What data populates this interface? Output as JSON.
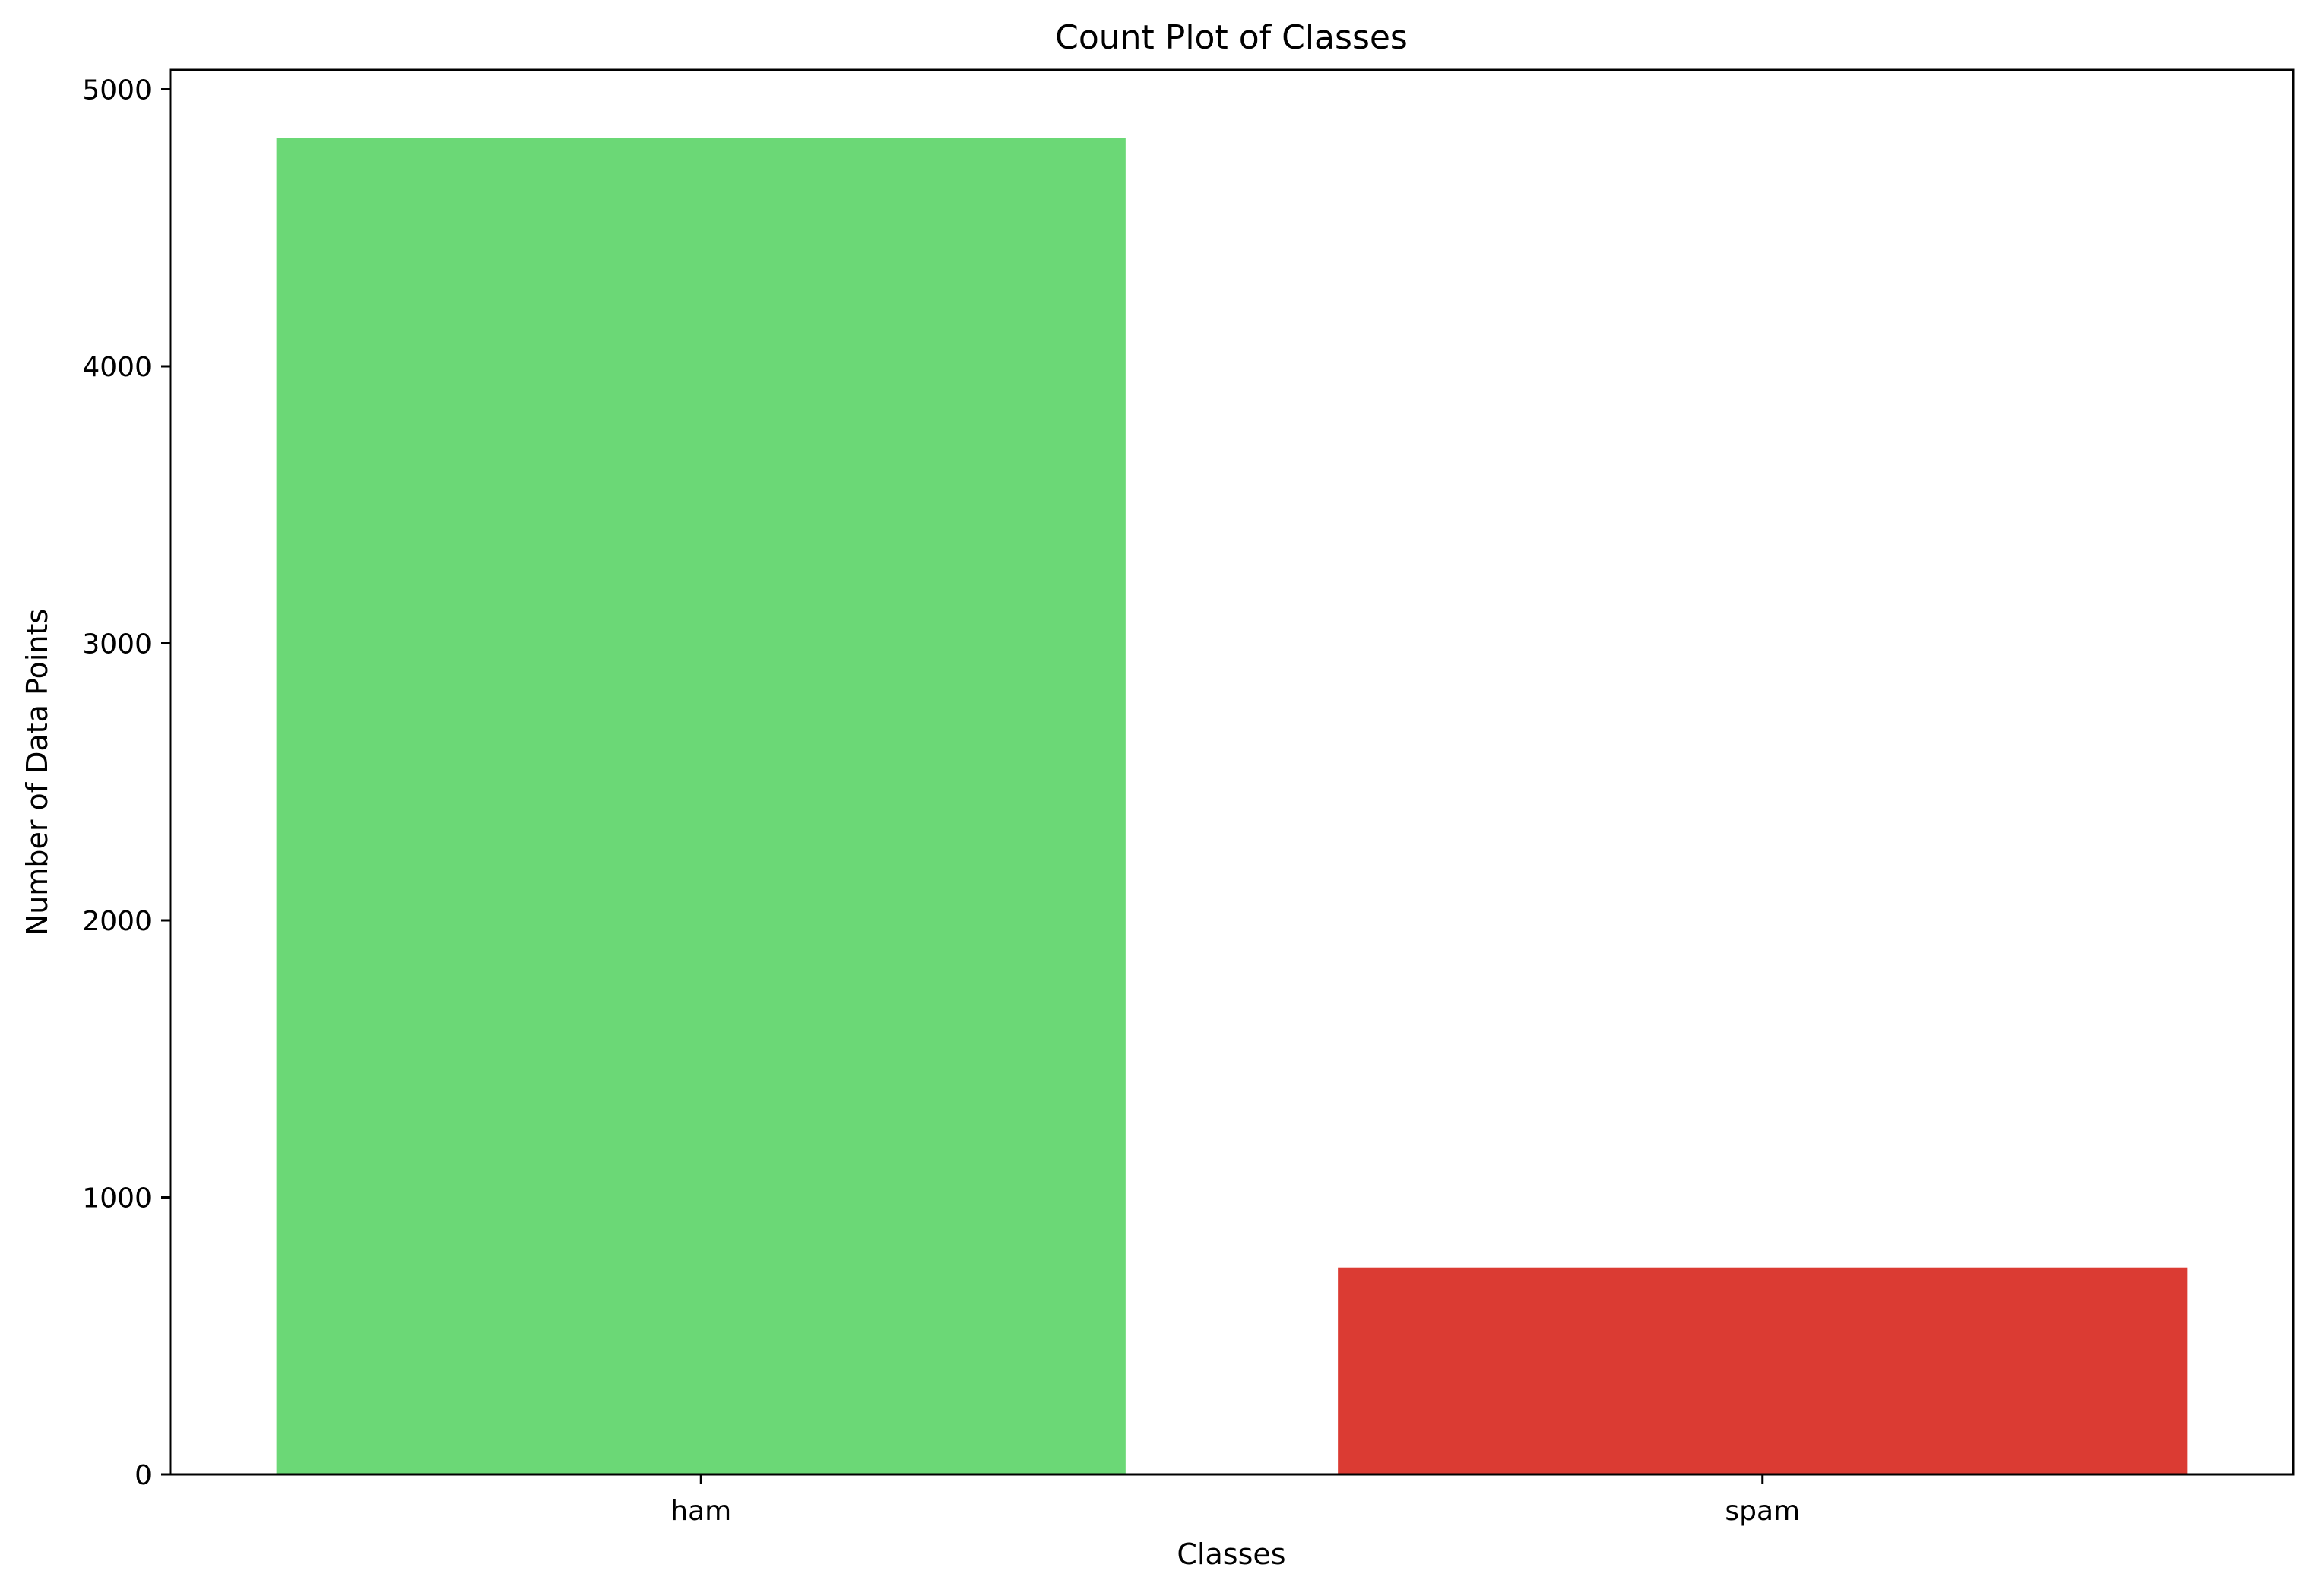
{
  "chart_data": {
    "type": "bar",
    "title": "Count Plot of Classes",
    "xlabel": "Classes",
    "ylabel": "Number of Data Points",
    "categories": [
      "ham",
      "spam"
    ],
    "values": [
      4825,
      747
    ],
    "colors": [
      "#6bd876",
      "#db3b33"
    ],
    "ylim": [
      0,
      5070
    ],
    "yticks": [
      0,
      1000,
      2000,
      3000,
      4000,
      5000
    ],
    "ytick_labels": [
      "0",
      "1000",
      "2000",
      "3000",
      "4000",
      "5000"
    ],
    "grid": false,
    "legend": "none"
  }
}
